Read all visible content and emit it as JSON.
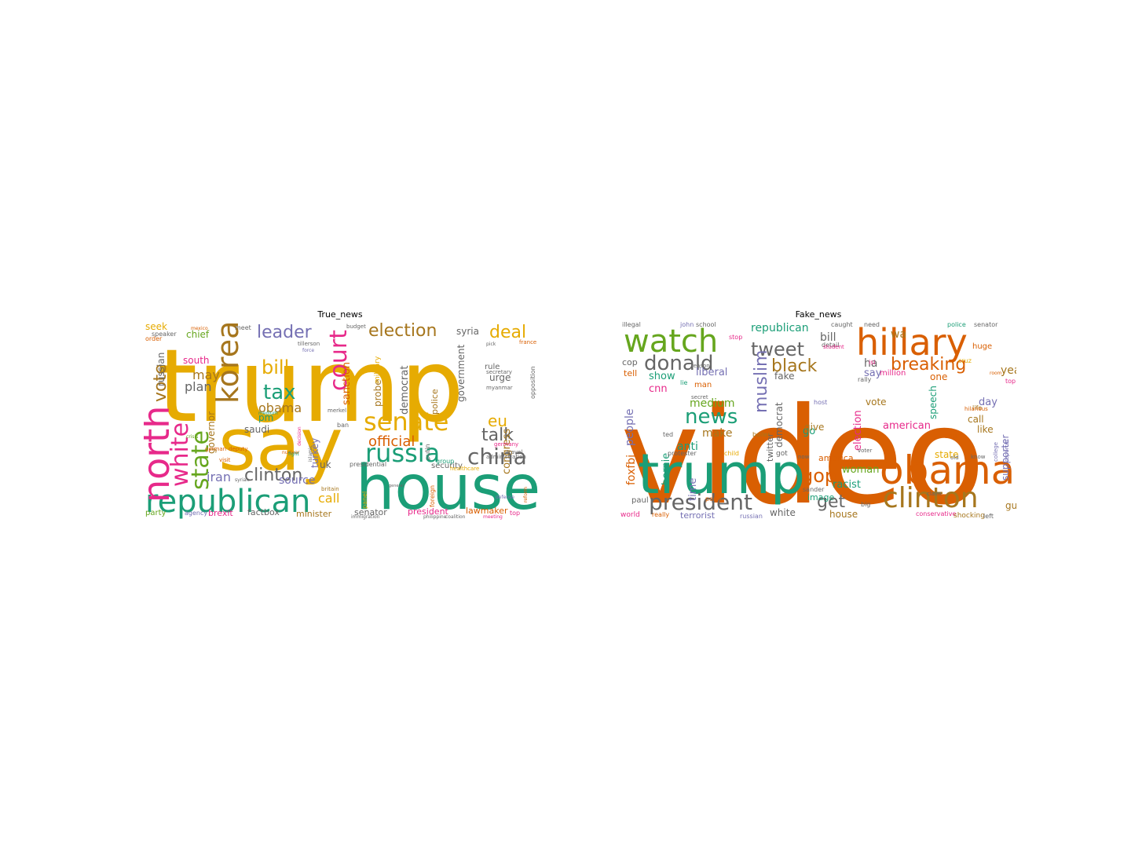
{
  "colors": {
    "orange": "#d95f02",
    "green": "#1b9e77",
    "gold": "#e6ab02",
    "purple": "#7570b3",
    "pink": "#e7298a",
    "lime": "#66a61e",
    "brown": "#a6761d",
    "gray": "#666666"
  },
  "chart_data": [
    {
      "type": "wordcloud",
      "title": "True_news",
      "words": [
        {
          "text": "trump",
          "c": "gold"
        },
        {
          "text": "say",
          "c": "gold"
        },
        {
          "text": "house",
          "c": "green"
        },
        {
          "text": "republican",
          "c": "green"
        },
        {
          "text": "russia",
          "c": "green"
        },
        {
          "text": "north",
          "c": "pink"
        },
        {
          "text": "korea",
          "c": "brown"
        },
        {
          "text": "white",
          "c": "pink"
        },
        {
          "text": "state",
          "c": "lime"
        },
        {
          "text": "senate",
          "c": "gold"
        },
        {
          "text": "china",
          "c": "gray"
        },
        {
          "text": "clinton",
          "c": "gray"
        },
        {
          "text": "court",
          "c": "pink"
        },
        {
          "text": "election",
          "c": "brown"
        },
        {
          "text": "deal",
          "c": "gold"
        },
        {
          "text": "leader",
          "c": "purple"
        },
        {
          "text": "tax",
          "c": "green"
        },
        {
          "text": "bill",
          "c": "gold"
        },
        {
          "text": "vote",
          "c": "brown"
        },
        {
          "text": "talk",
          "c": "gray"
        },
        {
          "text": "official",
          "c": "orange"
        },
        {
          "text": "eu",
          "c": "gold"
        },
        {
          "text": "may",
          "c": "brown"
        },
        {
          "text": "plan",
          "c": "gray"
        },
        {
          "text": "obama",
          "c": "brown"
        },
        {
          "text": "iran",
          "c": "purple"
        },
        {
          "text": "call",
          "c": "gold"
        },
        {
          "text": "chief",
          "c": "lime"
        },
        {
          "text": "seek",
          "c": "gold"
        },
        {
          "text": "south",
          "c": "pink"
        },
        {
          "text": "sanction",
          "c": "orange"
        },
        {
          "text": "russian",
          "c": "gray"
        },
        {
          "text": "government",
          "c": "gray"
        },
        {
          "text": "democrat",
          "c": "gray"
        },
        {
          "text": "probe",
          "c": "brown"
        },
        {
          "text": "police",
          "c": "brown"
        },
        {
          "text": "syria",
          "c": "gray"
        },
        {
          "text": "urge",
          "c": "gray"
        },
        {
          "text": "rule",
          "c": "gray"
        },
        {
          "text": "congress",
          "c": "brown"
        },
        {
          "text": "source",
          "c": "purple"
        },
        {
          "text": "saudi",
          "c": "gray"
        },
        {
          "text": "pm",
          "c": "green"
        },
        {
          "text": "turkey",
          "c": "purple"
        },
        {
          "text": "governor",
          "c": "brown"
        },
        {
          "text": "uk",
          "c": "gray"
        },
        {
          "text": "brexit",
          "c": "pink"
        },
        {
          "text": "factbox",
          "c": "gray"
        },
        {
          "text": "minister",
          "c": "brown"
        },
        {
          "text": "senator",
          "c": "gray"
        },
        {
          "text": "president",
          "c": "pink"
        },
        {
          "text": "lawmaker",
          "c": "orange"
        },
        {
          "text": "party",
          "c": "lime"
        },
        {
          "text": "security",
          "c": "gray"
        },
        {
          "text": "military",
          "c": "gold"
        },
        {
          "text": "opposition",
          "c": "gray"
        },
        {
          "text": "putin",
          "c": "gray"
        },
        {
          "text": "order",
          "c": "orange"
        },
        {
          "text": "agency",
          "c": "purple"
        },
        {
          "text": "top",
          "c": "pink"
        },
        {
          "text": "myanmar",
          "c": "gray"
        },
        {
          "text": "ban",
          "c": "gray"
        },
        {
          "text": "merkel",
          "c": "gray"
        },
        {
          "text": "meet",
          "c": "gray"
        },
        {
          "text": "budget",
          "c": "gray"
        },
        {
          "text": "france",
          "c": "orange"
        },
        {
          "text": "visit",
          "c": "orange"
        },
        {
          "text": "crisis",
          "c": "lime"
        },
        {
          "text": "german",
          "c": "orange"
        },
        {
          "text": "group",
          "c": "green"
        },
        {
          "text": "britain",
          "c": "brown"
        },
        {
          "text": "healthcare",
          "c": "gold"
        },
        {
          "text": "nuclear",
          "c": "orange"
        },
        {
          "text": "syrian",
          "c": "gray"
        },
        {
          "text": "fight",
          "c": "green"
        },
        {
          "text": "islamic",
          "c": "gray"
        },
        {
          "text": "panel",
          "c": "gold"
        },
        {
          "text": "foreign",
          "c": "orange"
        },
        {
          "text": "presidential",
          "c": "gray"
        },
        {
          "text": "travel",
          "c": "gray"
        },
        {
          "text": "exclusive",
          "c": "purple"
        },
        {
          "text": "administration",
          "c": "gray"
        },
        {
          "text": "germany",
          "c": "pink"
        },
        {
          "text": "medium",
          "c": "green"
        },
        {
          "text": "mexico",
          "c": "orange"
        },
        {
          "text": "secretary",
          "c": "gray"
        },
        {
          "text": "tillerson",
          "c": "gray"
        },
        {
          "text": "force",
          "c": "purple"
        },
        {
          "text": "pick",
          "c": "gray"
        },
        {
          "text": "general",
          "c": "gray"
        },
        {
          "text": "deputy",
          "c": "orange"
        },
        {
          "text": "decision",
          "c": "pink"
        },
        {
          "text": "reform",
          "c": "orange"
        },
        {
          "text": "defense",
          "c": "purple"
        },
        {
          "text": "meeting",
          "c": "pink"
        },
        {
          "text": "philippine",
          "c": "gray"
        },
        {
          "text": "coalition",
          "c": "gray"
        },
        {
          "text": "immigration",
          "c": "gray"
        },
        {
          "text": "speaker",
          "c": "gray"
        }
      ]
    },
    {
      "type": "wordcloud",
      "title": "Fake_news",
      "words": [
        {
          "text": "video",
          "c": "orange"
        },
        {
          "text": "trump",
          "c": "green"
        },
        {
          "text": "obama",
          "c": "orange"
        },
        {
          "text": "hillary",
          "c": "orange"
        },
        {
          "text": "clinton",
          "c": "brown"
        },
        {
          "text": "watch",
          "c": "lime"
        },
        {
          "text": "president",
          "c": "gray"
        },
        {
          "text": "donald",
          "c": "gray"
        },
        {
          "text": "tweet",
          "c": "gray"
        },
        {
          "text": "breaking",
          "c": "orange"
        },
        {
          "text": "black",
          "c": "brown"
        },
        {
          "text": "news",
          "c": "green"
        },
        {
          "text": "muslim",
          "c": "purple"
        },
        {
          "text": "gop",
          "c": "orange"
        },
        {
          "text": "get",
          "c": "gray"
        },
        {
          "text": "republican",
          "c": "green"
        },
        {
          "text": "bill",
          "c": "gray"
        },
        {
          "text": "wa",
          "c": "brown"
        },
        {
          "text": "liberal",
          "c": "purple"
        },
        {
          "text": "ha",
          "c": "gray"
        },
        {
          "text": "say",
          "c": "purple"
        },
        {
          "text": "year",
          "c": "brown"
        },
        {
          "text": "cnn",
          "c": "pink"
        },
        {
          "text": "show",
          "c": "green"
        },
        {
          "text": "medium",
          "c": "lime"
        },
        {
          "text": "make",
          "c": "brown"
        },
        {
          "text": "anti",
          "c": "green"
        },
        {
          "text": "cop",
          "c": "gray"
        },
        {
          "text": "tell",
          "c": "orange"
        },
        {
          "text": "people",
          "c": "purple"
        },
        {
          "text": "democrat",
          "c": "gray"
        },
        {
          "text": "twitter",
          "c": "gray"
        },
        {
          "text": "election",
          "c": "pink"
        },
        {
          "text": "vote",
          "c": "brown"
        },
        {
          "text": "american",
          "c": "pink"
        },
        {
          "text": "one",
          "c": "orange"
        },
        {
          "text": "million",
          "c": "pink"
        },
        {
          "text": "fake",
          "c": "gray"
        },
        {
          "text": "day",
          "c": "purple"
        },
        {
          "text": "call",
          "c": "brown"
        },
        {
          "text": "like",
          "c": "brown"
        },
        {
          "text": "state",
          "c": "gold"
        },
        {
          "text": "speech",
          "c": "green"
        },
        {
          "text": "supporter",
          "c": "purple"
        },
        {
          "text": "go",
          "c": "green"
        },
        {
          "text": "give",
          "c": "brown"
        },
        {
          "text": "america",
          "c": "orange"
        },
        {
          "text": "woman",
          "c": "lime"
        },
        {
          "text": "racist",
          "c": "green"
        },
        {
          "text": "house",
          "c": "brown"
        },
        {
          "text": "white",
          "c": "gray"
        },
        {
          "text": "image",
          "c": "green"
        },
        {
          "text": "terrorist",
          "c": "purple"
        },
        {
          "text": "gun",
          "c": "brown"
        },
        {
          "text": "foxfbi",
          "c": "orange"
        },
        {
          "text": "bernie",
          "c": "green"
        },
        {
          "text": "time",
          "c": "purple"
        },
        {
          "text": "paul",
          "c": "gray"
        },
        {
          "text": "world",
          "c": "pink"
        },
        {
          "text": "man",
          "c": "orange"
        },
        {
          "text": "lie",
          "c": "green"
        },
        {
          "text": "ted",
          "c": "gray"
        },
        {
          "text": "protester",
          "c": "gray"
        },
        {
          "text": "child",
          "c": "gold"
        },
        {
          "text": "got",
          "c": "gray"
        },
        {
          "text": "court",
          "c": "orange"
        },
        {
          "text": "conservative",
          "c": "pink"
        },
        {
          "text": "shocking",
          "c": "brown"
        },
        {
          "text": "left",
          "c": "gray"
        },
        {
          "text": "illegal",
          "c": "gray"
        },
        {
          "text": "john",
          "c": "purple"
        },
        {
          "text": "school",
          "c": "gray"
        },
        {
          "text": "caught",
          "c": "gray"
        },
        {
          "text": "need",
          "c": "gray"
        },
        {
          "text": "police",
          "c": "green"
        },
        {
          "text": "senator",
          "c": "gray"
        },
        {
          "text": "huge",
          "c": "orange"
        },
        {
          "text": "room",
          "c": "orange"
        },
        {
          "text": "top",
          "c": "pink"
        },
        {
          "text": "life",
          "c": "brown"
        },
        {
          "text": "reporter",
          "c": "purple"
        },
        {
          "text": "college",
          "c": "purple"
        },
        {
          "text": "rally",
          "c": "gray"
        },
        {
          "text": "host",
          "c": "purple"
        },
        {
          "text": "sander",
          "c": "gray"
        },
        {
          "text": "detail",
          "c": "gray"
        },
        {
          "text": "student",
          "c": "pink"
        },
        {
          "text": "boiler",
          "c": "brown"
        },
        {
          "text": "reason",
          "c": "gray"
        },
        {
          "text": "secret",
          "c": "gray"
        },
        {
          "text": "claim",
          "c": "gray"
        },
        {
          "text": "hilarious",
          "c": "orange"
        },
        {
          "text": "voter",
          "c": "gray"
        },
        {
          "text": "old",
          "c": "gray"
        },
        {
          "text": "know",
          "c": "gray"
        },
        {
          "text": "now",
          "c": "gray"
        },
        {
          "text": "stop",
          "c": "pink"
        },
        {
          "text": "isi",
          "c": "pink"
        },
        {
          "text": "big",
          "c": "gray"
        },
        {
          "text": "cruz",
          "c": "gold"
        },
        {
          "text": "really",
          "c": "orange"
        },
        {
          "text": "russian",
          "c": "purple"
        },
        {
          "text": "party",
          "c": "orange"
        }
      ]
    }
  ]
}
